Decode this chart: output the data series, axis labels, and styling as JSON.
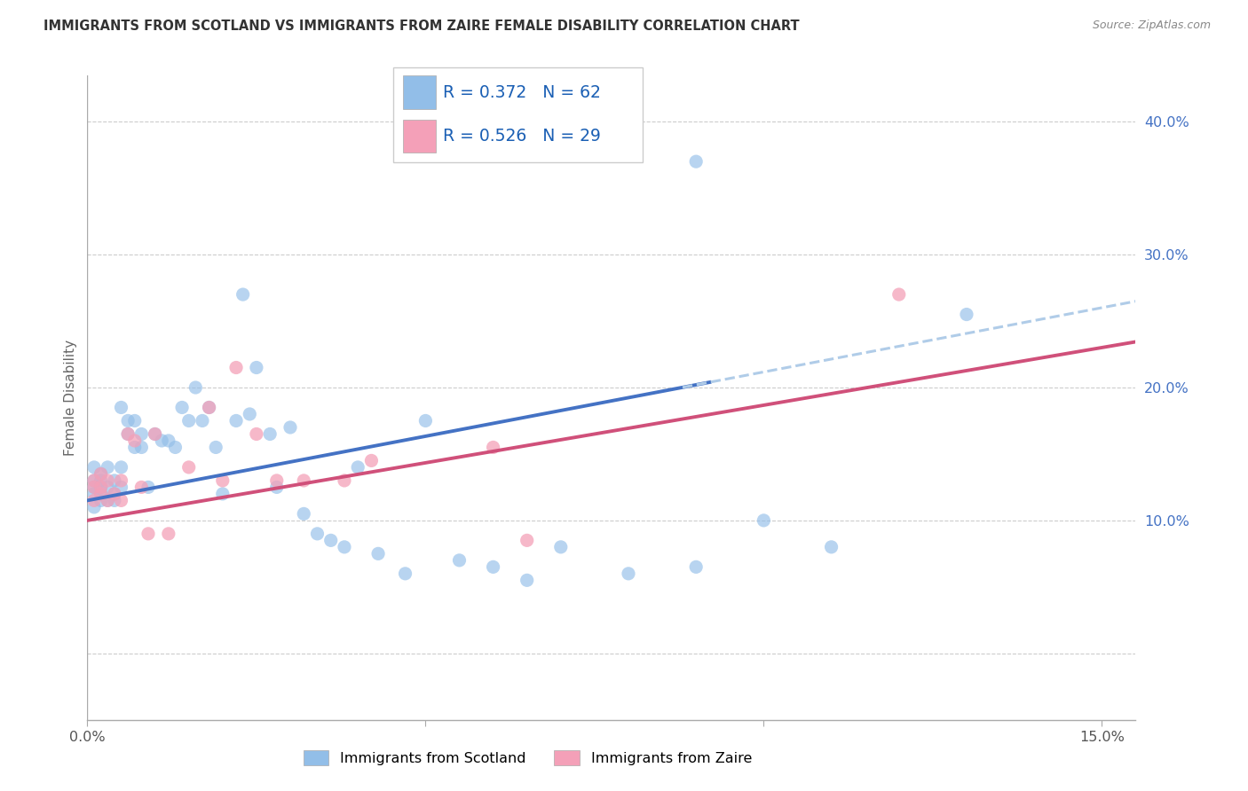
{
  "title": "IMMIGRANTS FROM SCOTLAND VS IMMIGRANTS FROM ZAIRE FEMALE DISABILITY CORRELATION CHART",
  "source": "Source: ZipAtlas.com",
  "ylabel": "Female Disability",
  "xlim": [
    0.0,
    0.155
  ],
  "ylim": [
    -0.05,
    0.435
  ],
  "x_tick_positions": [
    0.0,
    0.05,
    0.1,
    0.15
  ],
  "x_tick_labels": [
    "0.0%",
    "",
    "",
    "15.0%"
  ],
  "y_tick_positions": [
    0.1,
    0.2,
    0.3,
    0.4
  ],
  "y_tick_labels": [
    "10.0%",
    "20.0%",
    "30.0%",
    "40.0%"
  ],
  "scotland_color": "#92BEE8",
  "zaire_color": "#F4A0B8",
  "scotland_R": 0.372,
  "scotland_N": 62,
  "zaire_R": 0.526,
  "zaire_N": 29,
  "legend_label_scotland": "Immigrants from Scotland",
  "legend_label_zaire": "Immigrants from Zaire",
  "regression_color_scotland": "#4472C4",
  "regression_color_zaire": "#D0507A",
  "regression_dashed_color": "#B0CCE8",
  "background_color": "#FFFFFF",
  "grid_color": "#CCCCCC",
  "scot_intercept": 0.115,
  "scot_slope": 0.967,
  "zaire_intercept": 0.1,
  "zaire_slope": 0.867,
  "scotland_x": [
    0.001,
    0.001,
    0.001,
    0.001,
    0.001,
    0.002,
    0.002,
    0.002,
    0.002,
    0.002,
    0.003,
    0.003,
    0.003,
    0.004,
    0.004,
    0.004,
    0.005,
    0.005,
    0.005,
    0.006,
    0.006,
    0.007,
    0.007,
    0.008,
    0.008,
    0.009,
    0.01,
    0.011,
    0.012,
    0.013,
    0.014,
    0.015,
    0.016,
    0.017,
    0.018,
    0.019,
    0.02,
    0.022,
    0.023,
    0.024,
    0.025,
    0.027,
    0.028,
    0.03,
    0.032,
    0.034,
    0.036,
    0.038,
    0.04,
    0.043,
    0.047,
    0.05,
    0.055,
    0.06,
    0.065,
    0.07,
    0.08,
    0.09,
    0.1,
    0.11,
    0.13,
    0.09
  ],
  "scotland_y": [
    0.13,
    0.12,
    0.14,
    0.11,
    0.125,
    0.135,
    0.115,
    0.12,
    0.13,
    0.125,
    0.14,
    0.115,
    0.125,
    0.115,
    0.12,
    0.13,
    0.125,
    0.14,
    0.185,
    0.175,
    0.165,
    0.155,
    0.175,
    0.155,
    0.165,
    0.125,
    0.165,
    0.16,
    0.16,
    0.155,
    0.185,
    0.175,
    0.2,
    0.175,
    0.185,
    0.155,
    0.12,
    0.175,
    0.27,
    0.18,
    0.215,
    0.165,
    0.125,
    0.17,
    0.105,
    0.09,
    0.085,
    0.08,
    0.14,
    0.075,
    0.06,
    0.175,
    0.07,
    0.065,
    0.055,
    0.08,
    0.06,
    0.065,
    0.1,
    0.08,
    0.255,
    0.37
  ],
  "zaire_x": [
    0.001,
    0.001,
    0.001,
    0.002,
    0.002,
    0.002,
    0.003,
    0.003,
    0.004,
    0.005,
    0.005,
    0.006,
    0.007,
    0.008,
    0.009,
    0.01,
    0.012,
    0.015,
    0.018,
    0.02,
    0.022,
    0.025,
    0.028,
    0.032,
    0.038,
    0.042,
    0.06,
    0.065,
    0.12
  ],
  "zaire_y": [
    0.13,
    0.125,
    0.115,
    0.12,
    0.135,
    0.125,
    0.13,
    0.115,
    0.12,
    0.13,
    0.115,
    0.165,
    0.16,
    0.125,
    0.09,
    0.165,
    0.09,
    0.14,
    0.185,
    0.13,
    0.215,
    0.165,
    0.13,
    0.13,
    0.13,
    0.145,
    0.155,
    0.085,
    0.27
  ]
}
